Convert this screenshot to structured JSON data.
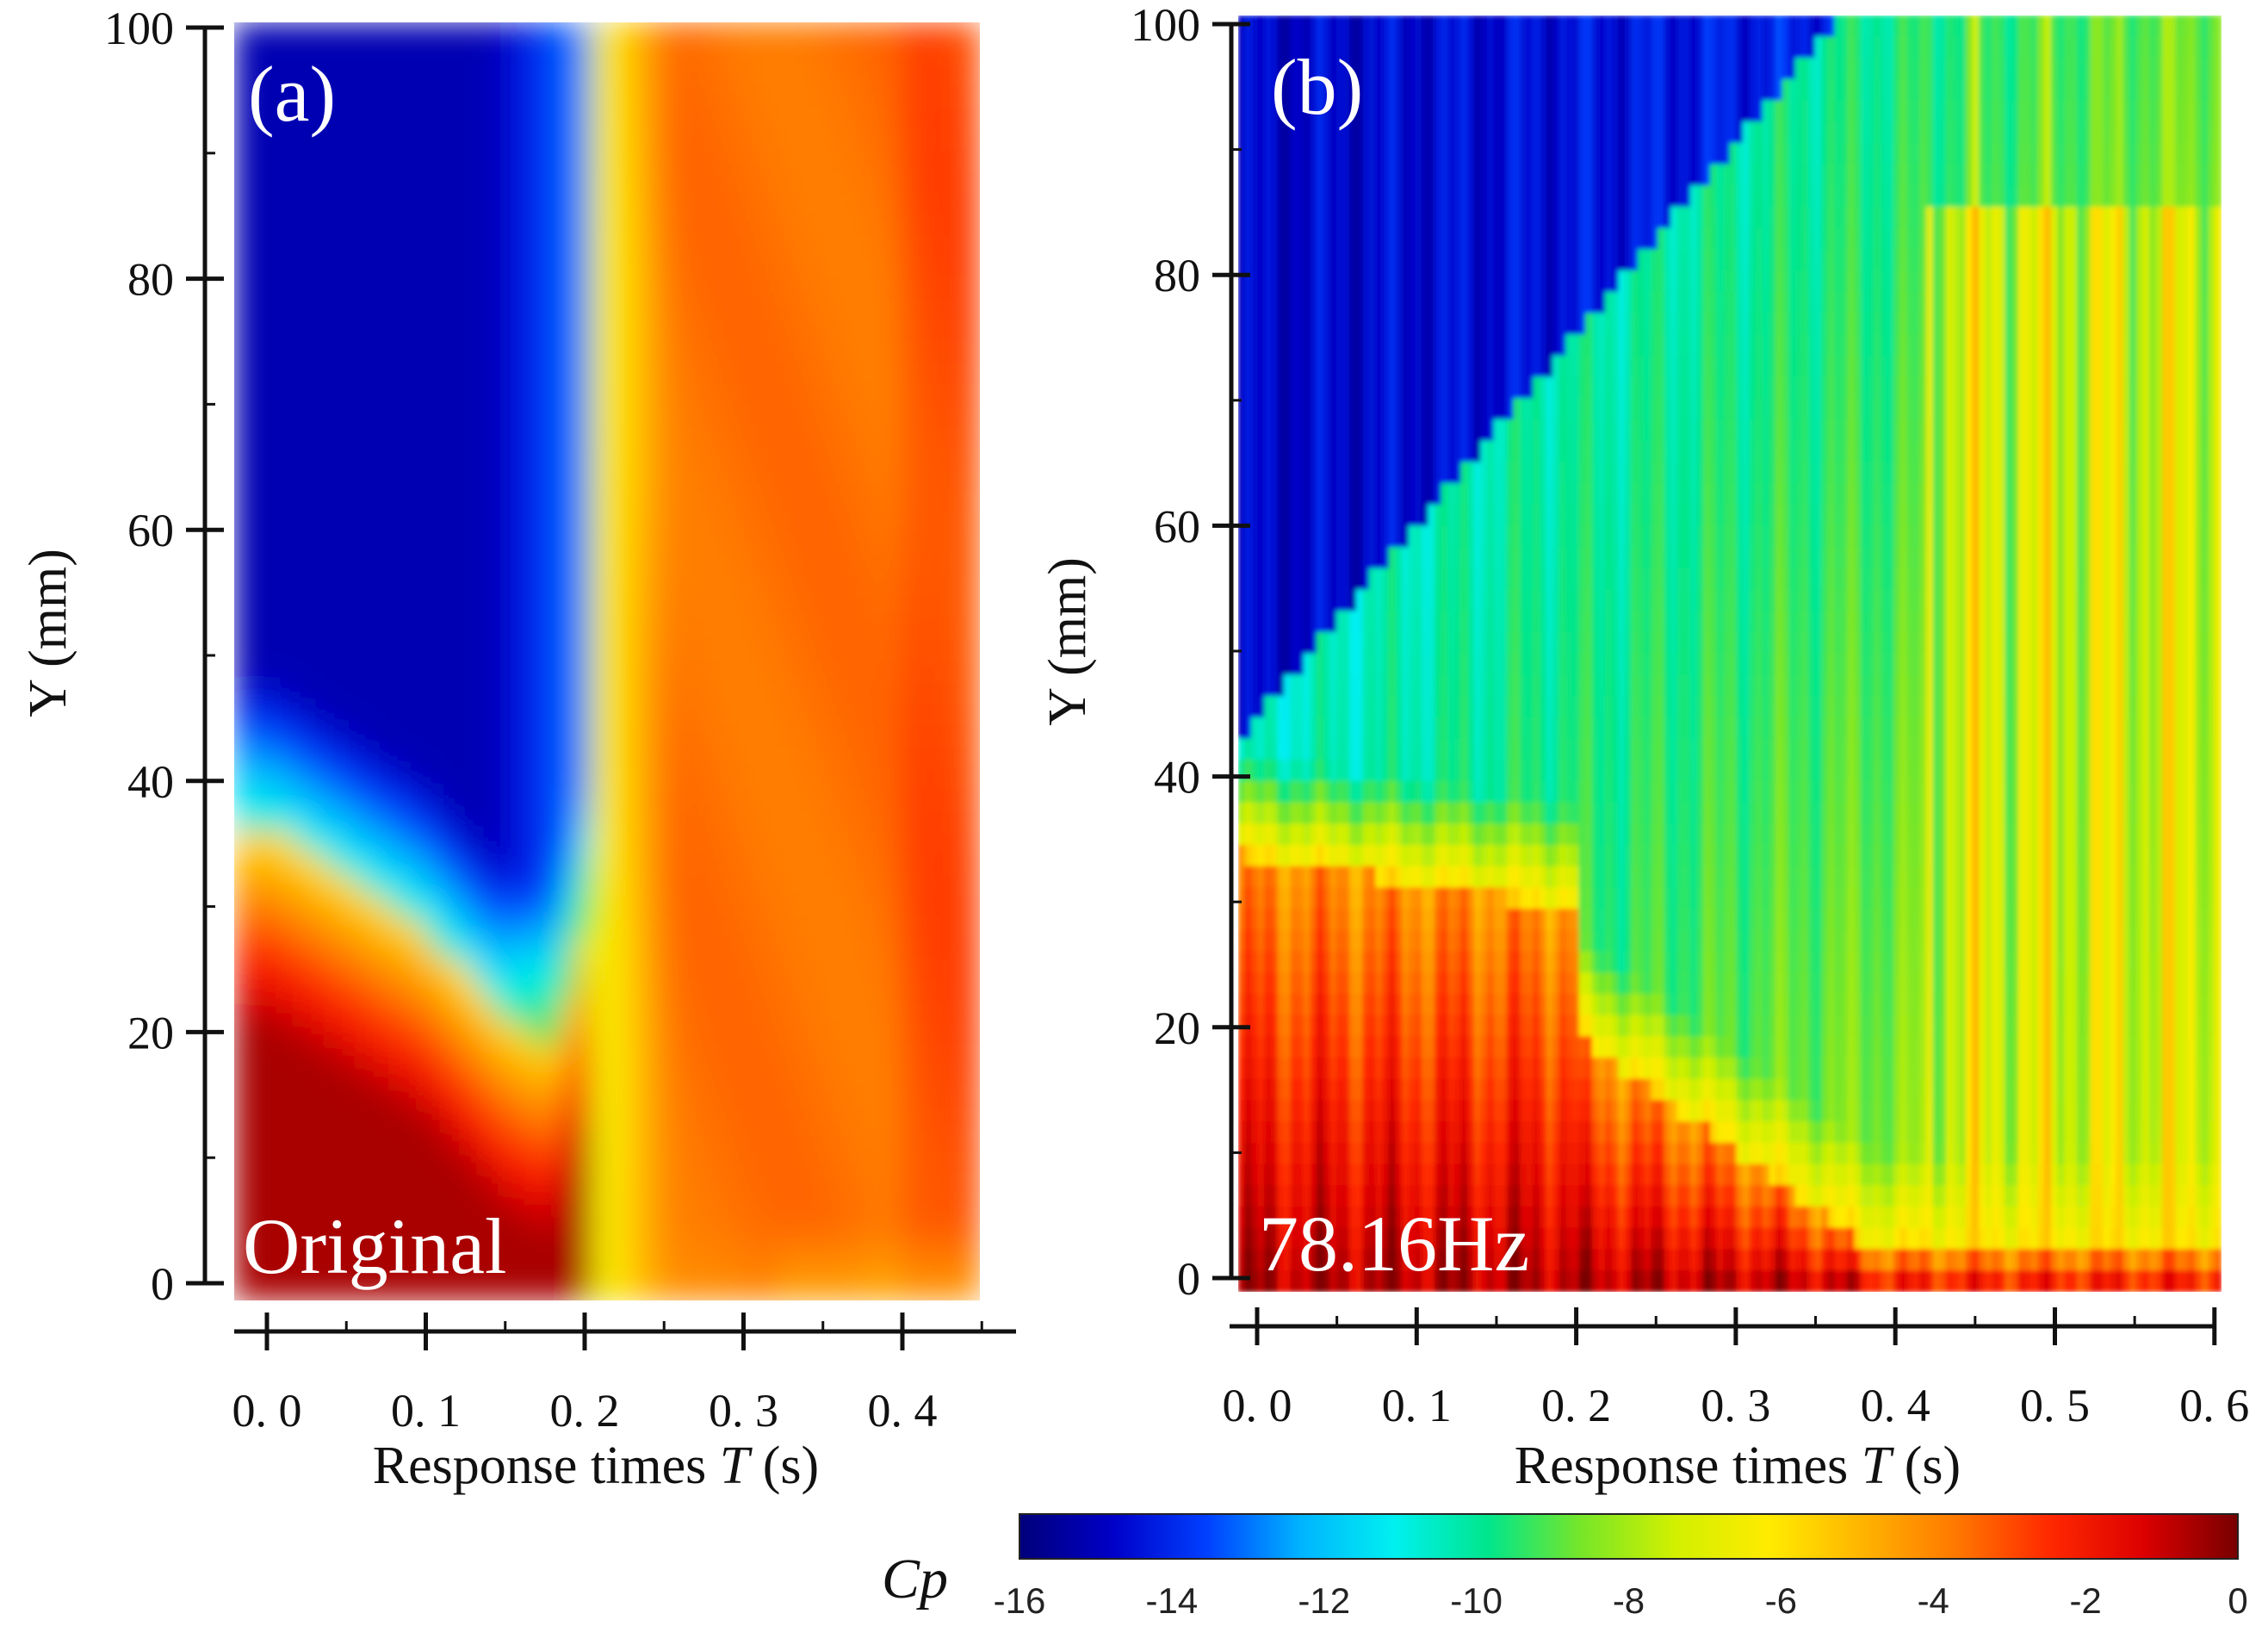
{
  "colors": {
    "colormap": [
      "#00007a",
      "#0000c8",
      "#0040ff",
      "#00b4ff",
      "#00f0f0",
      "#00e68c",
      "#78e628",
      "#d2f000",
      "#ffeb00",
      "#ffb400",
      "#ff7800",
      "#ff2800",
      "#dc0000",
      "#780000"
    ],
    "background": "#ffffff"
  },
  "chart_data": [
    {
      "id": "a",
      "type": "heatmap",
      "panel_label": "(a)",
      "annotation": "Original",
      "xlabel_prefix": "Response times ",
      "xlabel_var": "T",
      "xlabel_unit": " (s)",
      "ylabel": "Y (mm)",
      "xlim": [
        0.0,
        0.45
      ],
      "ylim": [
        0,
        100
      ],
      "x_ticks": [
        0.0,
        0.1,
        0.2,
        0.3,
        0.4
      ],
      "x_tick_labels": [
        "0. 0",
        "0. 1",
        "0. 2",
        "0. 3",
        "0. 4"
      ],
      "y_ticks": [
        0,
        20,
        40,
        60,
        80,
        100
      ],
      "y_tick_labels": [
        "0",
        "20",
        "40",
        "60",
        "80",
        "100"
      ],
      "description_boundary": {
        "t": [
          0.0,
          0.05,
          0.1,
          0.15,
          0.18,
          0.2,
          0.22,
          0.3,
          0.45
        ],
        "y_red_to_cyan": [
          37,
          33,
          29,
          22,
          20,
          28,
          100,
          100,
          100
        ]
      }
    },
    {
      "id": "b",
      "type": "heatmap",
      "panel_label": "(b)",
      "annotation": "78.16Hz",
      "xlabel_prefix": "Response times ",
      "xlabel_var": "T",
      "xlabel_unit": " (s)",
      "ylabel": "Y (mm)",
      "xlim": [
        0.0,
        0.6
      ],
      "ylim": [
        0,
        100
      ],
      "x_ticks": [
        0.0,
        0.1,
        0.2,
        0.3,
        0.4,
        0.5,
        0.6
      ],
      "x_tick_labels": [
        "0. 0",
        "0. 1",
        "0. 2",
        "0. 3",
        "0. 4",
        "0. 5",
        "0. 6"
      ],
      "y_ticks": [
        0,
        20,
        40,
        60,
        80,
        100
      ],
      "y_tick_labels": [
        "0",
        "20",
        "40",
        "60",
        "80",
        "100"
      ]
    }
  ],
  "colorbar": {
    "title": "Cp",
    "min": -16,
    "max": 0,
    "ticks": [
      -16,
      -14,
      -12,
      -10,
      -8,
      -6,
      -4,
      -2,
      0
    ],
    "tick_labels": [
      "-16",
      "-14",
      "-12",
      "-10",
      "-8",
      "-6",
      "-4",
      "-2",
      "0"
    ]
  }
}
